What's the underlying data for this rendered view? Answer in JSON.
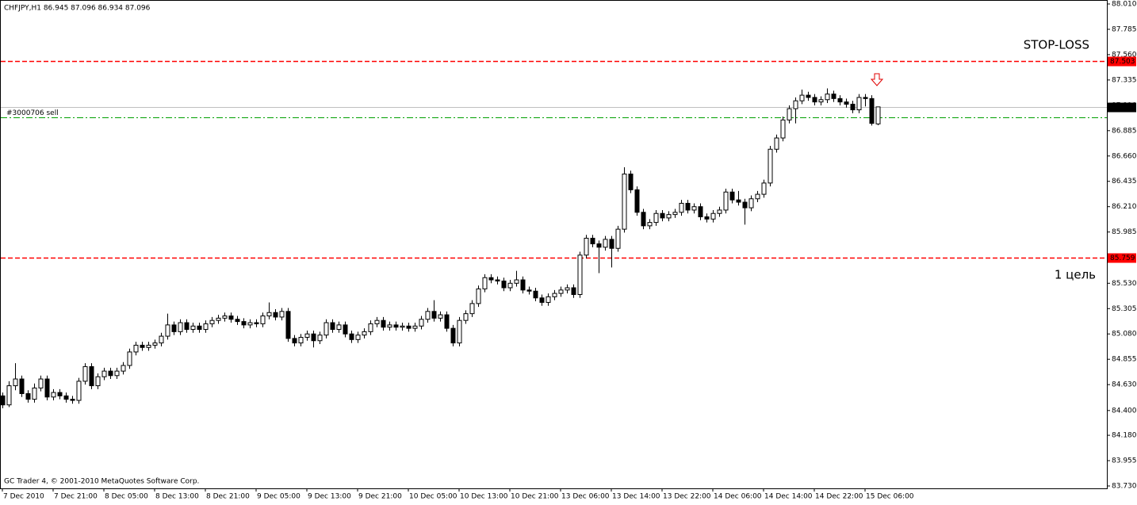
{
  "chart_data": {
    "type": "candlestick",
    "info": "CHFJPY,H1  86.945 87.096 86.934 87.096",
    "footer": "GC Trader 4, © 2001-2010 MetaQuotes Software Corp.",
    "annotations": [
      {
        "text": "STOP-LOSS",
        "color": "#800000"
      },
      {
        "text": "1 цель",
        "color": "#800000"
      }
    ],
    "order_label": "#3000706 sell",
    "up_color": "#ffffff",
    "down_color": "#000000",
    "ylim": [
      83.73,
      88.01
    ],
    "yticks": [
      {
        "value": 88.01,
        "label": "88.010"
      },
      {
        "value": 87.785,
        "label": "87.785"
      },
      {
        "value": 87.56,
        "label": "87.560"
      },
      {
        "value": 87.335,
        "label": "87.335"
      },
      {
        "value": 87.11,
        "label": "87.110"
      },
      {
        "value": 86.885,
        "label": "86.885"
      },
      {
        "value": 86.66,
        "label": "86.660"
      },
      {
        "value": 86.435,
        "label": "86.435"
      },
      {
        "value": 86.21,
        "label": "86.210"
      },
      {
        "value": 85.985,
        "label": "85.985"
      },
      {
        "value": 85.76,
        "label": "85.760"
      },
      {
        "value": 85.53,
        "label": "85.530"
      },
      {
        "value": 85.305,
        "label": "85.305"
      },
      {
        "value": 85.08,
        "label": "85.080"
      },
      {
        "value": 84.855,
        "label": "84.855"
      },
      {
        "value": 84.63,
        "label": "84.630"
      },
      {
        "value": 84.4,
        "label": "84.400"
      },
      {
        "value": 84.18,
        "label": "84.180"
      },
      {
        "value": 83.955,
        "label": "83.955"
      },
      {
        "value": 83.73,
        "label": "83.730"
      }
    ],
    "levels": [
      {
        "value": 87.503,
        "color": "#ff0000",
        "style": "dashed",
        "tagged": true
      },
      {
        "value": 85.759,
        "color": "#ff0000",
        "style": "dashed",
        "tagged": true
      },
      {
        "value": 87.096,
        "color": "#c0c0c0",
        "style": "solid",
        "tagged": true
      },
      {
        "value": 87.003,
        "color": "#00a000",
        "style": "dashdot",
        "tagged": false
      }
    ],
    "categories": [
      "7 Dec 2010",
      null,
      null,
      null,
      null,
      null,
      null,
      null,
      "7 Dec 21:00",
      null,
      null,
      null,
      null,
      null,
      null,
      null,
      "8 Dec 05:00",
      null,
      null,
      null,
      null,
      null,
      null,
      null,
      "8 Dec 13:00",
      null,
      null,
      null,
      null,
      null,
      null,
      null,
      "8 Dec 21:00",
      null,
      null,
      null,
      null,
      null,
      null,
      null,
      "9 Dec 05:00",
      null,
      null,
      null,
      null,
      null,
      null,
      null,
      "9 Dec 13:00",
      null,
      null,
      null,
      null,
      null,
      null,
      null,
      "9 Dec 21:00",
      null,
      null,
      null,
      null,
      null,
      null,
      null,
      "10 Dec 05:00",
      null,
      null,
      null,
      null,
      null,
      null,
      null,
      "10 Dec 13:00",
      null,
      null,
      null,
      null,
      null,
      null,
      null,
      "10 Dec 21:00",
      null,
      null,
      null,
      null,
      null,
      null,
      null,
      "13 Dec 06:00",
      null,
      null,
      null,
      null,
      null,
      null,
      null,
      "13 Dec 14:00",
      null,
      null,
      null,
      null,
      null,
      null,
      null,
      "13 Dec 22:00",
      null,
      null,
      null,
      null,
      null,
      null,
      null,
      "14 Dec 06:00",
      null,
      null,
      null,
      null,
      null,
      null,
      null,
      "14 Dec 14:00",
      null,
      null,
      null,
      null,
      null,
      null,
      null,
      "14 Dec 22:00",
      null,
      null,
      null,
      null,
      null,
      null,
      null,
      "15 Dec 06:00",
      null,
      null
    ],
    "open": [
      84.53,
      84.45,
      84.62,
      84.68,
      84.55,
      84.5,
      84.6,
      84.68,
      84.52,
      84.56,
      84.53,
      84.5,
      84.49,
      84.66,
      84.79,
      84.62,
      84.7,
      84.75,
      84.71,
      84.75,
      84.8,
      84.92,
      84.98,
      84.96,
      84.98,
      85.0,
      85.06,
      85.16,
      85.1,
      85.18,
      85.12,
      85.15,
      85.12,
      85.17,
      85.2,
      85.22,
      85.24,
      85.21,
      85.19,
      85.16,
      85.18,
      85.17,
      85.24,
      85.27,
      85.23,
      85.28,
      85.04,
      85.0,
      85.05,
      85.08,
      85.02,
      85.07,
      85.18,
      85.12,
      85.16,
      85.08,
      85.03,
      85.07,
      85.1,
      85.17,
      85.2,
      85.14,
      85.16,
      85.14,
      85.15,
      85.13,
      85.15,
      85.21,
      85.28,
      85.22,
      85.25,
      85.13,
      85.0,
      85.2,
      85.26,
      85.35,
      85.48,
      85.58,
      85.56,
      85.55,
      85.49,
      85.53,
      85.56,
      85.47,
      85.46,
      85.4,
      85.36,
      85.41,
      85.44,
      85.47,
      85.49,
      85.43,
      85.78,
      85.93,
      85.88,
      85.85,
      85.92,
      85.84,
      86.01,
      86.5,
      86.36,
      86.16,
      86.04,
      86.07,
      86.15,
      86.11,
      86.14,
      86.16,
      86.24,
      86.18,
      86.21,
      86.12,
      86.1,
      86.15,
      86.18,
      86.34,
      86.27,
      86.25,
      86.2,
      86.28,
      86.32,
      86.42,
      86.72,
      86.82,
      86.98,
      87.08,
      87.15,
      87.2,
      87.18,
      87.14,
      87.16,
      87.21,
      87.17,
      87.14,
      87.12,
      87.07,
      87.18,
      87.17,
      86.945
    ],
    "high": [
      84.56,
      84.66,
      84.82,
      84.71,
      84.58,
      84.64,
      84.71,
      84.71,
      84.59,
      84.59,
      84.56,
      84.53,
      84.69,
      84.82,
      84.82,
      84.73,
      84.78,
      84.78,
      84.78,
      84.83,
      84.95,
      85.01,
      85.01,
      85.01,
      85.03,
      85.09,
      85.26,
      85.19,
      85.21,
      85.21,
      85.18,
      85.18,
      85.2,
      85.23,
      85.25,
      85.27,
      85.27,
      85.24,
      85.22,
      85.21,
      85.21,
      85.27,
      85.36,
      85.3,
      85.31,
      85.31,
      85.07,
      85.08,
      85.11,
      85.11,
      85.1,
      85.21,
      85.21,
      85.19,
      85.19,
      85.11,
      85.1,
      85.13,
      85.2,
      85.23,
      85.23,
      85.19,
      85.19,
      85.18,
      85.18,
      85.18,
      85.24,
      85.31,
      85.38,
      85.28,
      85.28,
      85.16,
      85.23,
      85.29,
      85.38,
      85.51,
      85.61,
      85.61,
      85.59,
      85.58,
      85.56,
      85.64,
      85.59,
      85.5,
      85.49,
      85.43,
      85.44,
      85.47,
      85.5,
      85.52,
      85.52,
      85.81,
      85.96,
      85.96,
      85.91,
      85.95,
      85.95,
      86.04,
      86.56,
      86.53,
      86.39,
      86.19,
      86.1,
      86.18,
      86.18,
      86.17,
      86.19,
      86.27,
      86.27,
      86.24,
      86.24,
      86.15,
      86.18,
      86.21,
      86.37,
      86.37,
      86.35,
      86.28,
      86.31,
      86.35,
      86.45,
      86.75,
      86.85,
      87.01,
      87.11,
      87.18,
      87.25,
      87.23,
      87.21,
      87.19,
      87.26,
      87.24,
      87.2,
      87.17,
      87.15,
      87.21,
      87.21,
      87.2,
      87.096
    ],
    "low": [
      84.42,
      84.43,
      84.58,
      84.52,
      84.47,
      84.47,
      84.57,
      84.49,
      84.49,
      84.5,
      84.47,
      84.46,
      84.46,
      84.63,
      84.59,
      84.59,
      84.67,
      84.68,
      84.68,
      84.72,
      84.77,
      84.89,
      84.93,
      84.93,
      84.95,
      84.97,
      85.03,
      85.07,
      85.07,
      85.09,
      85.09,
      85.09,
      85.09,
      85.14,
      85.17,
      85.19,
      85.18,
      85.16,
      85.13,
      85.13,
      85.14,
      85.14,
      85.21,
      85.2,
      85.2,
      85.01,
      84.97,
      84.97,
      85.02,
      84.96,
      84.99,
      85.04,
      85.09,
      85.09,
      85.05,
      85.0,
      85.0,
      85.04,
      85.07,
      85.14,
      85.11,
      85.11,
      85.11,
      85.11,
      85.1,
      85.1,
      85.12,
      85.18,
      85.19,
      85.19,
      85.1,
      84.97,
      84.97,
      85.17,
      85.23,
      85.32,
      85.45,
      85.53,
      85.52,
      85.46,
      85.46,
      85.5,
      85.44,
      85.43,
      85.37,
      85.33,
      85.33,
      85.38,
      85.41,
      85.44,
      85.4,
      85.4,
      85.75,
      85.85,
      85.62,
      85.82,
      85.67,
      85.81,
      85.98,
      86.33,
      86.13,
      86.01,
      86.01,
      86.04,
      86.08,
      86.08,
      86.11,
      86.13,
      86.15,
      86.15,
      86.09,
      86.07,
      86.07,
      86.12,
      86.15,
      86.24,
      86.22,
      86.05,
      86.17,
      86.25,
      86.29,
      86.39,
      86.69,
      86.79,
      86.95,
      86.95,
      87.12,
      87.15,
      87.11,
      87.11,
      87.13,
      87.14,
      87.11,
      87.09,
      87.04,
      87.04,
      87.1,
      86.93,
      86.934
    ],
    "close": [
      84.45,
      84.62,
      84.68,
      84.55,
      84.5,
      84.6,
      84.68,
      84.52,
      84.56,
      84.53,
      84.5,
      84.49,
      84.66,
      84.79,
      84.62,
      84.7,
      84.75,
      84.71,
      84.75,
      84.8,
      84.92,
      84.98,
      84.96,
      84.98,
      85.0,
      85.06,
      85.16,
      85.1,
      85.18,
      85.12,
      85.15,
      85.12,
      85.17,
      85.2,
      85.22,
      85.24,
      85.21,
      85.19,
      85.16,
      85.18,
      85.17,
      85.24,
      85.27,
      85.23,
      85.28,
      85.04,
      85.0,
      85.05,
      85.08,
      85.02,
      85.07,
      85.18,
      85.12,
      85.16,
      85.08,
      85.03,
      85.07,
      85.1,
      85.17,
      85.2,
      85.14,
      85.16,
      85.14,
      85.15,
      85.13,
      85.15,
      85.21,
      85.28,
      85.22,
      85.25,
      85.13,
      85.0,
      85.2,
      85.26,
      85.35,
      85.48,
      85.58,
      85.56,
      85.55,
      85.49,
      85.53,
      85.56,
      85.47,
      85.46,
      85.4,
      85.36,
      85.41,
      85.44,
      85.47,
      85.49,
      85.43,
      85.78,
      85.93,
      85.88,
      85.85,
      85.92,
      85.84,
      86.01,
      86.5,
      86.36,
      86.16,
      86.04,
      86.07,
      86.15,
      86.11,
      86.14,
      86.16,
      86.24,
      86.18,
      86.21,
      86.12,
      86.1,
      86.15,
      86.18,
      86.34,
      86.27,
      86.25,
      86.2,
      86.28,
      86.32,
      86.42,
      86.72,
      86.82,
      86.98,
      87.08,
      87.15,
      87.2,
      87.18,
      87.14,
      87.16,
      87.21,
      87.17,
      87.14,
      87.12,
      87.07,
      87.18,
      87.17,
      86.95,
      87.096
    ]
  }
}
